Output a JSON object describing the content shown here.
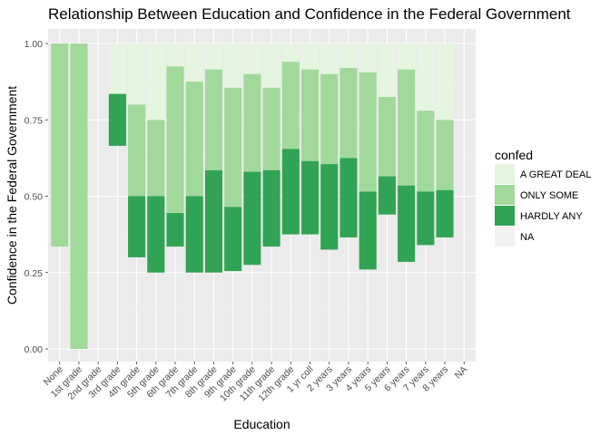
{
  "chart_data": {
    "type": "bar",
    "title": "Relationship Between Education and Confidence in the Federal Government",
    "xlabel": "Education",
    "ylabel": "Confidence in the Federal Government",
    "ylim": [
      0,
      1
    ],
    "yticks": [
      "0.00",
      "0.25",
      "0.50",
      "0.75",
      "1.00"
    ],
    "grid": true,
    "categories": [
      "None",
      "1st grade",
      "2nd grade",
      "3rd grade",
      "4th grade",
      "5th grade",
      "6th grade",
      "7th grade",
      "8th grade",
      "9th grade",
      "10th grade",
      "11th grade",
      "12th grade",
      "1 yr coll",
      "2 years",
      "3 years",
      "4 years",
      "5 years",
      "6 years",
      "7 years",
      "8 years",
      "NA"
    ],
    "legend": {
      "title": "confed",
      "position": "right",
      "entries": [
        {
          "label": "A GREAT DEAL",
          "color": "#e5f5e0"
        },
        {
          "label": "ONLY SOME",
          "color": "#a1d99b"
        },
        {
          "label": "HARDLY ANY",
          "color": "#31a354"
        },
        {
          "label": "NA",
          "color": "#f2f2f2"
        }
      ]
    },
    "series": [
      {
        "name": "A GREAT DEAL",
        "color": "#e5f5e0",
        "ranges": [
          null,
          null,
          null,
          [
            0.835,
            1.0
          ],
          [
            0.8,
            1.0
          ],
          [
            0.75,
            1.0
          ],
          [
            0.925,
            1.0
          ],
          [
            0.875,
            1.0
          ],
          [
            0.915,
            1.0
          ],
          [
            0.855,
            1.0
          ],
          [
            0.9,
            1.0
          ],
          [
            0.855,
            1.0
          ],
          [
            0.94,
            1.0
          ],
          [
            0.915,
            1.0
          ],
          [
            0.9,
            1.0
          ],
          [
            0.92,
            1.0
          ],
          [
            0.905,
            1.0
          ],
          [
            0.825,
            1.0
          ],
          [
            0.915,
            1.0
          ],
          [
            0.78,
            1.0
          ],
          [
            0.75,
            1.0
          ],
          null
        ]
      },
      {
        "name": "ONLY SOME",
        "color": "#a1d99b",
        "ranges": [
          [
            0.335,
            1.0
          ],
          [
            0.0,
            1.0
          ],
          null,
          null,
          [
            0.5,
            0.8
          ],
          [
            0.5,
            0.75
          ],
          [
            0.445,
            0.925
          ],
          [
            0.5,
            0.875
          ],
          [
            0.585,
            0.915
          ],
          [
            0.465,
            0.855
          ],
          [
            0.58,
            0.9
          ],
          [
            0.585,
            0.855
          ],
          [
            0.655,
            0.94
          ],
          [
            0.615,
            0.915
          ],
          [
            0.605,
            0.9
          ],
          [
            0.625,
            0.92
          ],
          [
            0.515,
            0.905
          ],
          [
            0.565,
            0.825
          ],
          [
            0.535,
            0.915
          ],
          [
            0.515,
            0.78
          ],
          [
            0.52,
            0.75
          ],
          null
        ]
      },
      {
        "name": "HARDLY ANY",
        "color": "#31a354",
        "ranges": [
          null,
          null,
          null,
          [
            0.665,
            0.835
          ],
          [
            0.3,
            0.5
          ],
          [
            0.25,
            0.5
          ],
          [
            0.335,
            0.445
          ],
          [
            0.25,
            0.5
          ],
          [
            0.25,
            0.585
          ],
          [
            0.255,
            0.465
          ],
          [
            0.275,
            0.58
          ],
          [
            0.335,
            0.585
          ],
          [
            0.375,
            0.655
          ],
          [
            0.375,
            0.615
          ],
          [
            0.325,
            0.605
          ],
          [
            0.365,
            0.625
          ],
          [
            0.26,
            0.515
          ],
          [
            0.44,
            0.565
          ],
          [
            0.285,
            0.535
          ],
          [
            0.34,
            0.515
          ],
          [
            0.365,
            0.52
          ],
          null
        ]
      }
    ]
  }
}
